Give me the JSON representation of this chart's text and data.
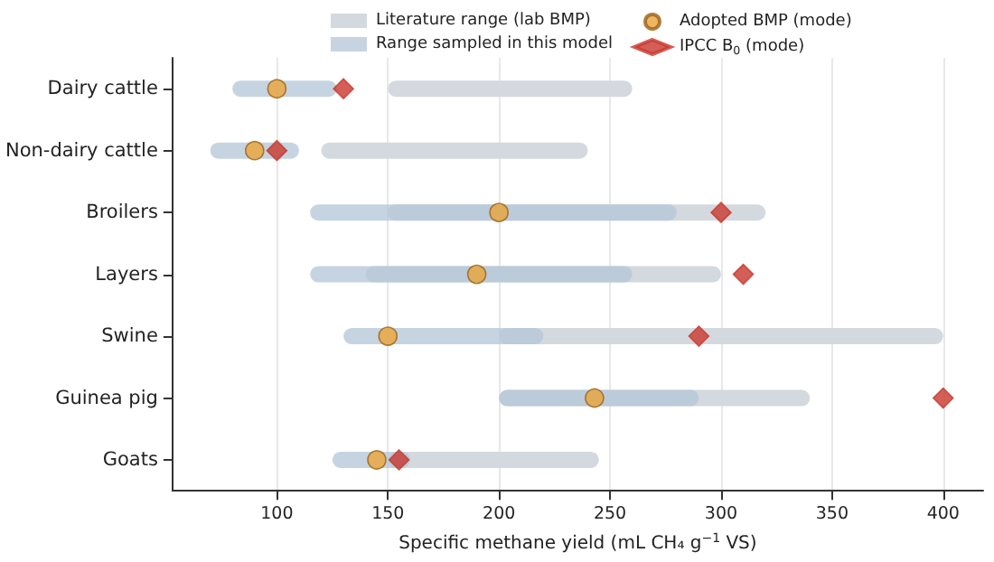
{
  "chart_data": {
    "type": "bar",
    "orientation": "horizontal",
    "categories": [
      "Dairy cattle",
      "Non-dairy cattle",
      "Broilers",
      "Layers",
      "Swine",
      "Guinea pig",
      "Goats"
    ],
    "xlabel": "Specific methane yield (mL CH₄ g$^{−1}$ VS)",
    "series": [
      {
        "name": "Literature range (lab BMP)",
        "color": "#d4d9df",
        "base": [
          150,
          120,
          150,
          140,
          200,
          200,
          150
        ],
        "values": [
          110,
          120,
          170,
          160,
          200,
          140,
          95
        ]
      },
      {
        "name": "Range sampled in this model",
        "color": "#b3c6d8",
        "base": [
          80,
          70,
          115,
          115,
          130,
          200,
          125
        ],
        "values": [
          47,
          40,
          165,
          145,
          90,
          90,
          35
        ]
      },
      {
        "name": "Adopted BMP (mode)",
        "type": "scatter",
        "marker": "circle",
        "color": "#eba43a",
        "x": [
          "Dairy cattle",
          "Non-dairy cattle",
          "Broilers",
          "Layers",
          "Swine",
          "Guinea pig",
          "Goats"
        ],
        "values": [
          100,
          90,
          200,
          190,
          150,
          243,
          145
        ]
      },
      {
        "name": "IPCC B$_{0}$ (mode)",
        "type": "scatter",
        "marker": "diamond",
        "color": "#c8372d",
        "x": [
          "Dairy cattle",
          "Non-dairy cattle",
          "Broilers",
          "Layers",
          "Swine",
          "Guinea pig",
          "Goats"
        ],
        "values": [
          130,
          100,
          300,
          310,
          290,
          400,
          155
        ]
      }
    ],
    "xlim": [
      53,
      418
    ],
    "xticks": [
      100,
      150,
      200,
      250,
      300,
      350,
      400
    ],
    "grid": "x",
    "legend": "top"
  }
}
